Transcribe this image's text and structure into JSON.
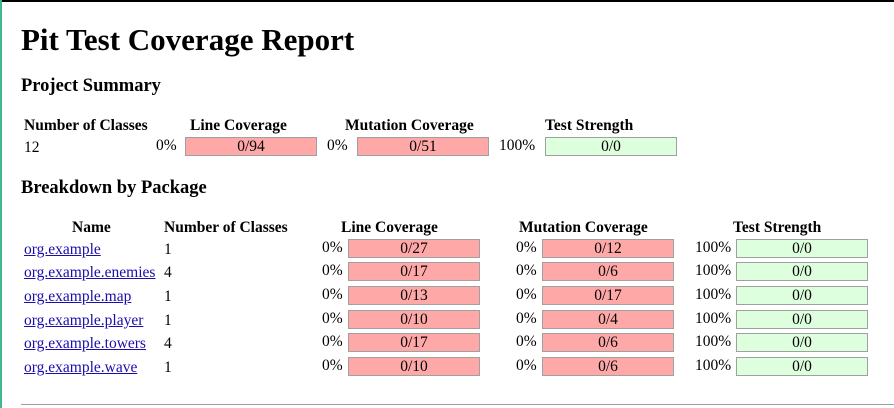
{
  "title": "Pit Test Coverage Report",
  "project_summary": {
    "heading": "Project Summary",
    "headers": [
      "Number of Classes",
      "Line Coverage",
      "Mutation Coverage",
      "Test Strength"
    ],
    "number_of_classes": "12",
    "line_pct": "0%",
    "line_ratio": "0/94",
    "mutation_pct": "0%",
    "mutation_ratio": "0/51",
    "strength_pct": "100%",
    "strength_ratio": "0/0"
  },
  "breakdown": {
    "heading": "Breakdown by Package",
    "headers": [
      "Name",
      "Number of Classes",
      "Line Coverage",
      "Mutation Coverage",
      "Test Strength"
    ],
    "rows": [
      {
        "name": "org.example",
        "classes": "1",
        "line_pct": "0%",
        "line_ratio": "0/27",
        "mutation_pct": "0%",
        "mutation_ratio": "0/12",
        "strength_pct": "100%",
        "strength_ratio": "0/0"
      },
      {
        "name": "org.example.enemies",
        "classes": "4",
        "line_pct": "0%",
        "line_ratio": "0/17",
        "mutation_pct": "0%",
        "mutation_ratio": "0/6",
        "strength_pct": "100%",
        "strength_ratio": "0/0"
      },
      {
        "name": "org.example.map",
        "classes": "1",
        "line_pct": "0%",
        "line_ratio": "0/13",
        "mutation_pct": "0%",
        "mutation_ratio": "0/17",
        "strength_pct": "100%",
        "strength_ratio": "0/0"
      },
      {
        "name": "org.example.player",
        "classes": "1",
        "line_pct": "0%",
        "line_ratio": "0/10",
        "mutation_pct": "0%",
        "mutation_ratio": "0/4",
        "strength_pct": "100%",
        "strength_ratio": "0/0"
      },
      {
        "name": "org.example.towers",
        "classes": "4",
        "line_pct": "0%",
        "line_ratio": "0/17",
        "mutation_pct": "0%",
        "mutation_ratio": "0/6",
        "strength_pct": "100%",
        "strength_ratio": "0/0"
      },
      {
        "name": "org.example.wave",
        "classes": "1",
        "line_pct": "0%",
        "line_ratio": "0/10",
        "mutation_pct": "0%",
        "mutation_ratio": "0/6",
        "strength_pct": "100%",
        "strength_ratio": "0/0"
      }
    ]
  },
  "colors": {
    "coverage_bar": "#ffa8a8",
    "strength_bar": "#ddffdd",
    "bar_border": "#a0a0a0",
    "link": "#1a0dab",
    "visited_link": "#551a8b"
  }
}
